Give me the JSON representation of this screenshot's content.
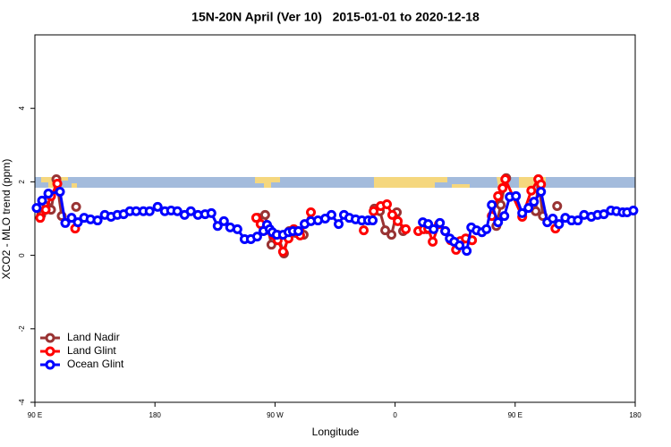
{
  "chart_data": {
    "type": "line",
    "title": "15N-20N April (Ver 10)   2015-01-01 to 2020-12-18",
    "x_label": "Longitude",
    "y_label": "XCO2 - MLO trend (ppm)",
    "xlim": [
      90,
      540
    ],
    "xticks": [
      {
        "value": 90,
        "label": "90 E"
      },
      180,
      {
        "value": 270,
        "label": "90 W"
      },
      {
        "value": 360,
        "label": "0"
      },
      {
        "value": 450,
        "label": "90 E"
      },
      {
        "value": 540,
        "label": "180"
      }
    ],
    "ylim": [
      -4,
      6
    ],
    "yticks": [
      -4,
      -2,
      0,
      2,
      4
    ],
    "legend": "bottomleft",
    "series": [
      {
        "name": "Land Nadir",
        "color": "#993333",
        "x": [
          94.7,
          98.7,
          102.1,
          106.1,
          110.1,
          null,
          120.9,
          null,
          257.2,
          262.6,
          267.3,
          272.0,
          276.7,
          280.7,
          285.4,
          291.5,
          null,
          344.5,
          348.6,
          352.6,
          357.3,
          361.3,
          366.0,
          null,
          384.1,
          null,
          435.9,
          439.2,
          443.3,
          null,
          465.4,
          467.4,
          470.8,
          null,
          481.5
        ],
        "values": [
          1.1,
          1.34,
          1.24,
          2.07,
          1.07,
          null,
          1.32,
          null,
          1.02,
          1.1,
          0.29,
          0.56,
          0.05,
          0.66,
          0.61,
          0.56,
          null,
          1.27,
          1.2,
          0.68,
          0.56,
          1.17,
          0.66,
          null,
          0.71,
          null,
          0.8,
          1.37,
          2.1,
          null,
          1.2,
          2.07,
          1.07,
          null,
          1.34
        ]
      },
      {
        "name": "Land Glint",
        "color": "#ff0000",
        "x": [
          94.0,
          98.1,
          102.1,
          106.8,
          null,
          120.2,
          null,
          255.9,
          259.2,
          262.6,
          268.6,
          272.0,
          276.0,
          280.1,
          284.1,
          288.8,
          296.9,
          null,
          336.5,
          null,
          343.9,
          349.2,
          353.9,
          357.9,
          362.0,
          368.0,
          null,
          377.4,
          381.5,
          384.8,
          388.2,
          392.9,
          397.6,
          401.7,
          405.7,
          409.0,
          413.0,
          417.7,
          null,
          432.5,
          437.2,
          440.6,
          442.6,
          455.3,
          462.1,
          467.4,
          469.4,
          null,
          480.2
        ],
        "values": [
          1.02,
          1.24,
          1.61,
          1.95,
          null,
          0.73,
          null,
          1.02,
          0.85,
          0.68,
          0.56,
          0.41,
          0.1,
          0.46,
          0.71,
          0.54,
          1.17,
          null,
          0.68,
          null,
          1.2,
          1.34,
          1.39,
          1.1,
          0.93,
          0.71,
          null,
          0.66,
          0.71,
          0.73,
          0.37,
          0.85,
          0.66,
          0.41,
          0.15,
          0.39,
          0.46,
          0.41,
          null,
          1.07,
          1.61,
          1.83,
          2.07,
          1.05,
          1.76,
          2.07,
          1.93,
          null,
          0.73
        ]
      },
      {
        "name": "Ocean Glint",
        "color": "#0000ff",
        "x": [
          91.3,
          95.4,
          100.1,
          108.8,
          112.8,
          117.5,
          122.2,
          126.9,
          131.7,
          137.0,
          142.4,
          147.1,
          151.8,
          156.5,
          161.2,
          165.9,
          171.3,
          176.0,
          182.0,
          187.4,
          192.1,
          196.8,
          202.2,
          206.9,
          212.2,
          217.6,
          222.3,
          227.0,
          231.7,
          236.4,
          241.8,
          247.2,
          251.9,
          256.6,
          261.3,
          264.0,
          266.0,
          268.0,
          271.3,
          276.0,
          280.1,
          283.4,
          287.5,
          292.2,
          296.9,
          302.2,
          307.6,
          312.3,
          317.7,
          321.7,
          325.7,
          330.4,
          335.1,
          339.8,
          343.2,
          null,
          380.8,
          384.8,
          388.9,
          393.6,
          397.6,
          401.0,
          404.3,
          408.3,
          413.7,
          417.1,
          421.1,
          425.1,
          428.5,
          432.5,
          437.2,
          441.9,
          445.9,
          450.6,
          455.3,
          460.0,
          464.1,
          469.4,
          474.1,
          478.2,
          482.9,
          487.6,
          492.3,
          497.0,
          501.7,
          507.1,
          511.8,
          516.5,
          521.8,
          525.9,
          530.6,
          533.9,
          538.6
        ],
        "values": [
          1.29,
          1.49,
          1.68,
          1.73,
          0.88,
          1.02,
          0.9,
          1.02,
          0.98,
          0.95,
          1.1,
          1.05,
          1.1,
          1.12,
          1.2,
          1.2,
          1.2,
          1.2,
          1.32,
          1.2,
          1.22,
          1.2,
          1.1,
          1.2,
          1.1,
          1.12,
          1.15,
          0.8,
          0.93,
          0.76,
          0.71,
          0.44,
          0.44,
          0.51,
          0.66,
          0.83,
          0.71,
          0.63,
          0.56,
          0.56,
          0.63,
          0.66,
          0.66,
          0.85,
          0.93,
          0.95,
          1.0,
          1.1,
          0.85,
          1.1,
          1.02,
          0.98,
          0.95,
          0.95,
          0.95,
          null,
          0.9,
          0.85,
          0.71,
          0.88,
          0.66,
          0.46,
          0.37,
          0.27,
          0.12,
          0.76,
          0.68,
          0.63,
          0.71,
          1.37,
          0.9,
          1.07,
          1.59,
          1.61,
          1.15,
          1.29,
          1.46,
          1.73,
          0.9,
          1.0,
          0.85,
          1.02,
          0.95,
          0.95,
          1.1,
          1.05,
          1.1,
          1.12,
          1.22,
          1.2,
          1.17,
          1.17,
          1.22
        ]
      }
    ]
  }
}
